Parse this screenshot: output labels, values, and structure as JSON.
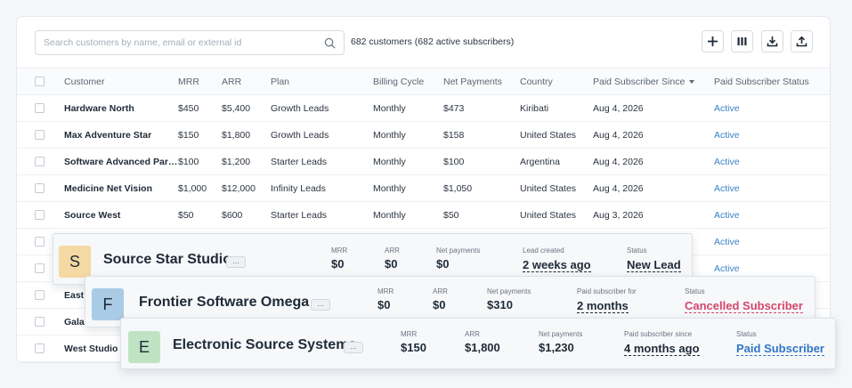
{
  "search": {
    "placeholder": "Search customers by name, email or external id"
  },
  "summary": "682 customers (682 active subscribers)",
  "toolbar": {
    "add_icon": "plus-icon",
    "columns_icon": "columns-icon",
    "download_icon": "download-icon",
    "upload_icon": "upload-icon"
  },
  "colors": {
    "accent": "#3b82c4",
    "status_red": "#d6456b",
    "status_blue": "#2f76c4"
  },
  "table": {
    "headers": [
      "Customer",
      "MRR",
      "ARR",
      "Plan",
      "Billing Cycle",
      "Net Payments",
      "Country",
      "Paid Subscriber Since",
      "Paid Subscriber Status"
    ],
    "rows": [
      [
        "Hardware North",
        "$450",
        "$5,400",
        "Growth Leads",
        "Monthly",
        "$473",
        "Kiribati",
        "Aug 4, 2026",
        "Active"
      ],
      [
        "Max Adventure Star",
        "$150",
        "$1,800",
        "Growth Leads",
        "Monthly",
        "$158",
        "United States",
        "Aug 4, 2026",
        "Active"
      ],
      [
        "Software Advanced Partners",
        "$100",
        "$1,200",
        "Starter Leads",
        "Monthly",
        "$100",
        "Argentina",
        "Aug 4, 2026",
        "Active"
      ],
      [
        "Medicine Net Vision",
        "$1,000",
        "$12,000",
        "Infinity Leads",
        "Monthly",
        "$1,050",
        "United States",
        "Aug 4, 2026",
        "Active"
      ],
      [
        "Source West",
        "$50",
        "$600",
        "Starter Leads",
        "Monthly",
        "$50",
        "United States",
        "Aug 3, 2026",
        "Active"
      ],
      [
        "",
        "",
        "",
        "",
        "",
        "",
        "",
        "",
        "Active"
      ],
      [
        "",
        "",
        "",
        "",
        "",
        "",
        "",
        "",
        "Active"
      ],
      [
        "East",
        "",
        "",
        "",
        "",
        "",
        "",
        "",
        ""
      ],
      [
        "Gala",
        "",
        "",
        "",
        "",
        "",
        "",
        "",
        ""
      ],
      [
        "West Studio",
        "",
        "",
        "",
        "",
        "",
        "",
        "",
        ""
      ]
    ]
  },
  "cards": [
    {
      "initial": "S",
      "avatar_color": "#f5d9a3",
      "name": "Source Star Studio",
      "more": "...",
      "stats": [
        {
          "label": "MRR",
          "value": "$0"
        },
        {
          "label": "ARR",
          "value": "$0"
        },
        {
          "label": "Net payments",
          "value": "$0"
        },
        {
          "label": "Lead created",
          "value": "2 weeks ago"
        },
        {
          "label": "Status",
          "value": "New Lead"
        }
      ]
    },
    {
      "initial": "F",
      "avatar_color": "#a9cbe6",
      "name": "Frontier Software Omega",
      "more": "...",
      "stats": [
        {
          "label": "MRR",
          "value": "$0"
        },
        {
          "label": "ARR",
          "value": "$0"
        },
        {
          "label": "Net payments",
          "value": "$310"
        },
        {
          "label": "Paid subscriber for",
          "value": "2 months"
        },
        {
          "label": "Status",
          "value": "Cancelled Subscriber"
        }
      ]
    },
    {
      "initial": "E",
      "avatar_color": "#bfe3c3",
      "name": "Electronic Source Systems",
      "more": "...",
      "stats": [
        {
          "label": "MRR",
          "value": "$150"
        },
        {
          "label": "ARR",
          "value": "$1,800"
        },
        {
          "label": "Net payments",
          "value": "$1,230"
        },
        {
          "label": "Paid subscriber since",
          "value": "4 months ago"
        },
        {
          "label": "Status",
          "value": "Paid Subscriber"
        }
      ]
    }
  ]
}
